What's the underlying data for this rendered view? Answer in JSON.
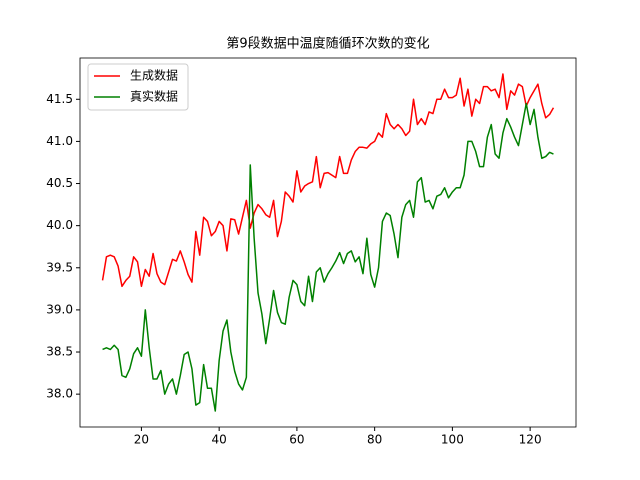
{
  "chart_data": {
    "type": "line",
    "title": "第9段数据中温度随循环次数的变化",
    "x": [
      10,
      11,
      12,
      13,
      14,
      15,
      16,
      17,
      18,
      19,
      20,
      21,
      22,
      23,
      24,
      25,
      26,
      27,
      28,
      29,
      30,
      31,
      32,
      33,
      34,
      35,
      36,
      37,
      38,
      39,
      40,
      41,
      42,
      43,
      44,
      45,
      46,
      47,
      48,
      49,
      50,
      51,
      52,
      53,
      54,
      55,
      56,
      57,
      58,
      59,
      60,
      61,
      62,
      63,
      64,
      65,
      66,
      67,
      68,
      69,
      70,
      71,
      72,
      73,
      74,
      75,
      76,
      77,
      78,
      79,
      80,
      81,
      82,
      83,
      84,
      85,
      86,
      87,
      88,
      89,
      90,
      91,
      92,
      93,
      94,
      95,
      96,
      97,
      98,
      99,
      100,
      101,
      102,
      103,
      104,
      105,
      106,
      107,
      108,
      109,
      110,
      111,
      112,
      113,
      114,
      115,
      116,
      117,
      118,
      119,
      120,
      121,
      122,
      123,
      124,
      125,
      126
    ],
    "series": [
      {
        "name": "生成数据",
        "color": "#ff0000",
        "values": [
          39.35,
          39.63,
          39.65,
          39.63,
          39.52,
          39.28,
          39.35,
          39.4,
          39.63,
          39.57,
          39.28,
          39.48,
          39.4,
          39.67,
          39.43,
          39.33,
          39.3,
          39.45,
          39.6,
          39.58,
          39.7,
          39.57,
          39.42,
          39.33,
          39.93,
          39.65,
          40.1,
          40.05,
          39.88,
          39.93,
          40.05,
          40.0,
          39.7,
          40.08,
          40.07,
          39.9,
          40.1,
          40.3,
          39.97,
          40.15,
          40.25,
          40.2,
          40.13,
          40.1,
          40.3,
          39.87,
          40.05,
          40.4,
          40.35,
          40.28,
          40.65,
          40.4,
          40.47,
          40.5,
          40.52,
          40.82,
          40.45,
          40.62,
          40.63,
          40.6,
          40.57,
          40.82,
          40.62,
          40.62,
          40.78,
          40.88,
          40.93,
          40.93,
          40.92,
          40.97,
          41.0,
          41.1,
          41.05,
          41.33,
          41.2,
          41.15,
          41.2,
          41.15,
          41.07,
          41.12,
          41.5,
          41.2,
          41.27,
          41.2,
          41.35,
          41.33,
          41.5,
          41.5,
          41.62,
          41.52,
          41.52,
          41.55,
          41.75,
          41.42,
          41.62,
          41.3,
          41.5,
          41.45,
          41.65,
          41.65,
          41.6,
          41.62,
          41.52,
          41.8,
          41.38,
          41.6,
          41.55,
          41.68,
          41.65,
          41.42,
          41.52,
          41.6,
          41.68,
          41.45,
          41.28,
          41.32,
          41.4
        ]
      },
      {
        "name": "真实数据",
        "color": "#008000",
        "values": [
          38.53,
          38.55,
          38.53,
          38.58,
          38.53,
          38.22,
          38.2,
          38.3,
          38.48,
          38.55,
          38.45,
          39.0,
          38.55,
          38.18,
          38.18,
          38.28,
          38.0,
          38.12,
          38.18,
          38.0,
          38.22,
          38.47,
          38.5,
          38.3,
          37.87,
          37.9,
          38.35,
          38.07,
          38.07,
          37.8,
          38.4,
          38.75,
          38.88,
          38.5,
          38.27,
          38.12,
          38.05,
          38.2,
          40.72,
          39.85,
          39.2,
          38.95,
          38.6,
          38.9,
          39.23,
          38.97,
          38.85,
          38.83,
          39.15,
          39.35,
          39.3,
          39.1,
          39.05,
          39.4,
          39.1,
          39.45,
          39.5,
          39.33,
          39.43,
          39.5,
          39.58,
          39.68,
          39.55,
          39.67,
          39.7,
          39.57,
          39.63,
          39.43,
          39.85,
          39.42,
          39.27,
          39.5,
          40.05,
          40.15,
          40.12,
          39.9,
          39.62,
          40.1,
          40.25,
          40.3,
          40.1,
          40.52,
          40.57,
          40.28,
          40.3,
          40.2,
          40.35,
          40.37,
          40.45,
          40.33,
          40.4,
          40.45,
          40.45,
          40.6,
          41.0,
          41.0,
          40.88,
          40.7,
          40.7,
          41.05,
          41.2,
          40.85,
          40.8,
          41.1,
          41.27,
          41.17,
          41.05,
          40.95,
          41.2,
          41.45,
          41.2,
          41.38,
          41.05,
          40.8,
          40.82,
          40.87,
          40.85
        ]
      }
    ],
    "xlim": [
      4.2,
      131.8
    ],
    "ylim": [
      37.61,
      41.99
    ],
    "xticks": [
      20,
      40,
      60,
      80,
      100,
      120
    ],
    "yticks": [
      {
        "value": 38,
        "label": "38.0"
      },
      38.5,
      {
        "value": 39,
        "label": "39.0"
      },
      39.5,
      {
        "value": 40,
        "label": "40.0"
      },
      40.5,
      {
        "value": 41,
        "label": "41.0"
      },
      41.5
    ],
    "legend": "upper left"
  }
}
